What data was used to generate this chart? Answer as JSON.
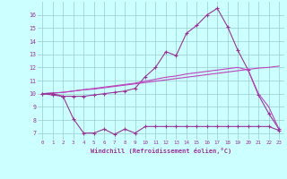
{
  "x": [
    0,
    1,
    2,
    3,
    4,
    5,
    6,
    7,
    8,
    9,
    10,
    11,
    12,
    13,
    14,
    15,
    16,
    17,
    18,
    19,
    20,
    21,
    22,
    23
  ],
  "line1": [
    10.0,
    9.9,
    9.8,
    9.8,
    9.8,
    9.9,
    10.0,
    10.1,
    10.2,
    10.4,
    11.3,
    12.0,
    13.2,
    12.9,
    14.6,
    15.2,
    16.0,
    16.5,
    15.1,
    13.3,
    11.8,
    9.9,
    8.5,
    7.3
  ],
  "line2": [
    10.0,
    10.05,
    10.1,
    10.2,
    10.3,
    10.35,
    10.45,
    10.55,
    10.65,
    10.75,
    10.85,
    10.95,
    11.05,
    11.15,
    11.25,
    11.35,
    11.45,
    11.55,
    11.65,
    11.75,
    11.85,
    11.95,
    12.0,
    12.1
  ],
  "line3": [
    10.0,
    10.05,
    10.1,
    10.2,
    10.3,
    10.4,
    10.5,
    10.6,
    10.7,
    10.8,
    10.95,
    11.1,
    11.25,
    11.35,
    11.5,
    11.6,
    11.7,
    11.8,
    11.9,
    12.0,
    11.8,
    10.0,
    9.0,
    7.3
  ],
  "line4": [
    10.0,
    10.0,
    9.8,
    8.1,
    7.0,
    7.0,
    7.3,
    6.9,
    7.3,
    7.0,
    7.5,
    7.5,
    7.5,
    7.5,
    7.5,
    7.5,
    7.5,
    7.5,
    7.5,
    7.5,
    7.5,
    7.5,
    7.5,
    7.2
  ],
  "color1": "#993399",
  "color2": "#bb44bb",
  "bg_color": "#ccffff",
  "grid_color": "#99cccc",
  "label_color": "#993399",
  "xlabel": "Windchill (Refroidissement éolien,°C)",
  "ylim": [
    6.5,
    17.0
  ],
  "xlim": [
    -0.5,
    23.5
  ],
  "yticks": [
    7,
    8,
    9,
    10,
    11,
    12,
    13,
    14,
    15,
    16
  ],
  "xticks": [
    0,
    1,
    2,
    3,
    4,
    5,
    6,
    7,
    8,
    9,
    10,
    11,
    12,
    13,
    14,
    15,
    16,
    17,
    18,
    19,
    20,
    21,
    22,
    23
  ]
}
